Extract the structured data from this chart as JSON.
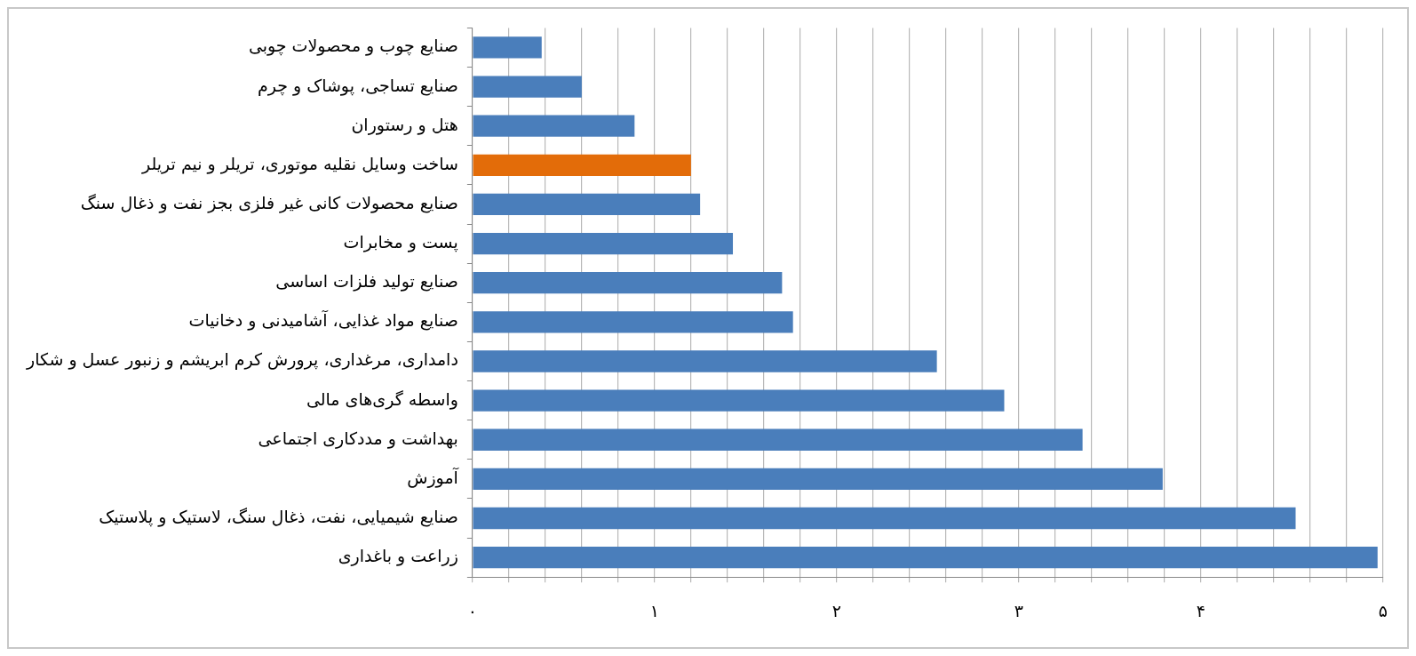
{
  "chart_data": {
    "type": "bar",
    "orientation": "horizontal",
    "categories": [
      "صنایع چوب و محصولات چوبی",
      "صنایع تساجی، پوشاک و چرم",
      "هتل و رستوران",
      "ساخت وسایل نقلیه موتوری، تریلر و نیم تریلر",
      "صنایع محصولات کانی غیر فلزی بجز نفت و ذغال سنگ",
      "پست و مخابرات",
      "صنایع تولید فلزات اساسی",
      "صنایع مواد غذایی، آشامیدنی و دخانیات",
      "دامداری، مرغداری، پرورش کرم ابریشم و زنبور عسل و شکار",
      "واسطه گری‌های مالی",
      "بهداشت و مددکاری اجتماعی",
      "آموزش",
      "صنایع شیمیایی، نفت، ذغال سنگ، لاستیک و پلاستیک",
      "زراعت و باغداری"
    ],
    "values": [
      0.38,
      0.6,
      0.89,
      1.2,
      1.25,
      1.43,
      1.7,
      1.76,
      2.55,
      2.92,
      3.35,
      3.79,
      4.52,
      4.97
    ],
    "colors": [
      "#4a7ebb",
      "#4a7ebb",
      "#4a7ebb",
      "#e36c09",
      "#4a7ebb",
      "#4a7ebb",
      "#4a7ebb",
      "#4a7ebb",
      "#4a7ebb",
      "#4a7ebb",
      "#4a7ebb",
      "#4a7ebb",
      "#4a7ebb",
      "#4a7ebb"
    ],
    "xlim": [
      0,
      5
    ],
    "xticks": [
      {
        "value": 0,
        "label": "۰"
      },
      {
        "value": 0.2,
        "label": null
      },
      {
        "value": 0.4,
        "label": null
      },
      {
        "value": 0.6,
        "label": null
      },
      {
        "value": 0.8,
        "label": null
      },
      {
        "value": 1,
        "label": "۱"
      },
      {
        "value": 1.2,
        "label": null
      },
      {
        "value": 1.4,
        "label": null
      },
      {
        "value": 1.6,
        "label": null
      },
      {
        "value": 1.8,
        "label": null
      },
      {
        "value": 2,
        "label": "۲"
      },
      {
        "value": 2.2,
        "label": null
      },
      {
        "value": 2.4,
        "label": null
      },
      {
        "value": 2.6,
        "label": null
      },
      {
        "value": 2.8,
        "label": null
      },
      {
        "value": 3,
        "label": "۳"
      },
      {
        "value": 3.2,
        "label": null
      },
      {
        "value": 3.4,
        "label": null
      },
      {
        "value": 3.6,
        "label": null
      },
      {
        "value": 3.8,
        "label": null
      },
      {
        "value": 4,
        "label": "۴"
      },
      {
        "value": 4.2,
        "label": null
      },
      {
        "value": 4.4,
        "label": null
      },
      {
        "value": 4.6,
        "label": null
      },
      {
        "value": 4.8,
        "label": null
      },
      {
        "value": 5,
        "label": "۵"
      }
    ],
    "grid": "x"
  }
}
